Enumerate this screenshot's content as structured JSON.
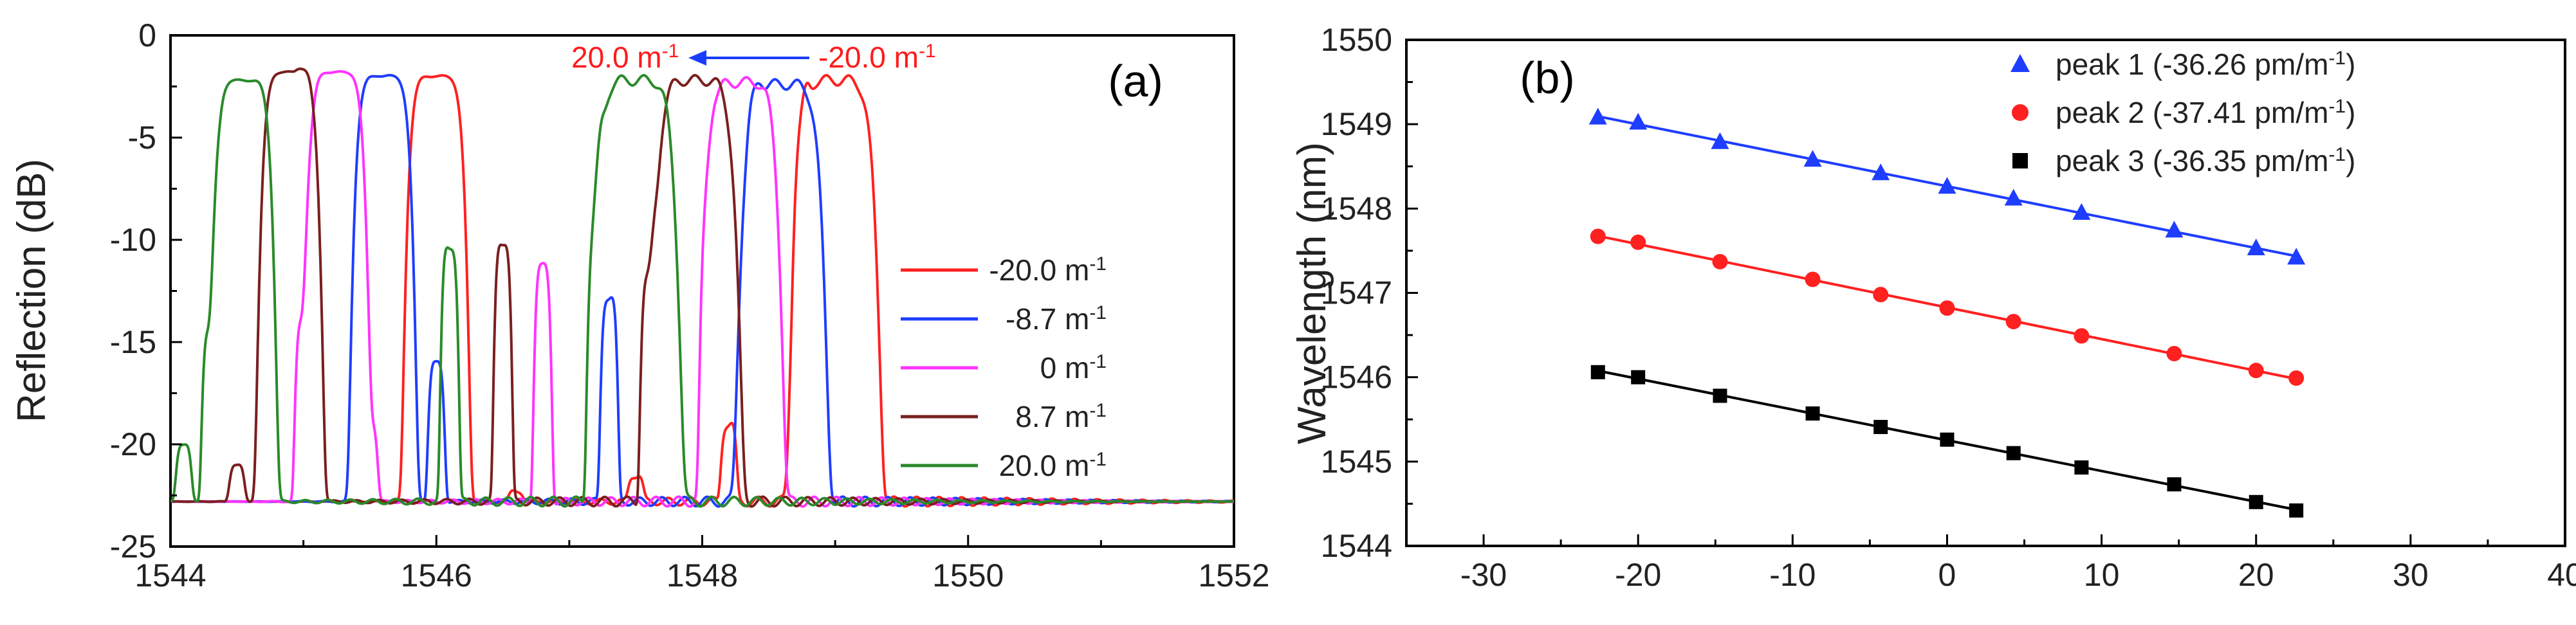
{
  "chart_data": [
    {
      "panel": "(a)",
      "type": "line",
      "title": "",
      "xlabel": "",
      "ylabel": "Reflection (dB)",
      "xlim": [
        1544,
        1552
      ],
      "ylim": [
        -25,
        0
      ],
      "xticks": [
        "1544",
        "1546",
        "1548",
        "1550",
        "1552"
      ],
      "yticks": [
        "0",
        "-5",
        "-10",
        "-15",
        "-20",
        "-25"
      ],
      "grid": false,
      "legend_position": "right",
      "annotation": {
        "left": "20.0 m",
        "right": "-20.0 m",
        "superscript": "-1",
        "color": "#ff1a1a",
        "arrow_color": "#1a3cff"
      },
      "series": [
        {
          "name": "-20.0 m",
          "sup": "-1",
          "color": "#ff2020",
          "main_peak": [
            1549.0,
            -2.2
          ],
          "width": 0.55,
          "side_lobes": [
            [
              1548.75,
              -10.3
            ],
            [
              1548.2,
              -19.0
            ],
            [
              1547.5,
              -21.5
            ],
            [
              1546.6,
              -22.3
            ]
          ]
        },
        {
          "name": "-8.7 m",
          "sup": "-1",
          "color": "#1f3dff",
          "main_peak": [
            1548.6,
            -2.4
          ],
          "width": 0.55,
          "side_lobes": [
            [
              1548.4,
              -12.5
            ],
            [
              1547.3,
              -12.8
            ],
            [
              1546.0,
              -16.0
            ],
            [
              1545.6,
              -20.5
            ]
          ]
        },
        {
          "name": "0 m",
          "sup": "-1",
          "color": "#ff33ff",
          "main_peak": [
            1548.3,
            -2.3
          ],
          "width": 0.5,
          "side_lobes": [
            [
              1548.05,
              -11.8
            ],
            [
              1546.8,
              -11.3
            ],
            [
              1545.5,
              -19.0
            ],
            [
              1545.0,
              -14.0
            ]
          ]
        },
        {
          "name": "8.7 m",
          "sup": "-1",
          "color": "#7a1f1f",
          "main_peak": [
            1547.95,
            -2.2
          ],
          "width": 0.55,
          "side_lobes": [
            [
              1547.6,
              -12.0
            ],
            [
              1546.5,
              -10.1
            ],
            [
              1545.0,
              -14.0
            ],
            [
              1544.5,
              -21.0
            ]
          ]
        },
        {
          "name": "20.0 m",
          "sup": "-1",
          "color": "#2a8a2a",
          "main_peak": [
            1547.5,
            -2.2
          ],
          "width": 0.55,
          "side_lobes": [
            [
              1547.2,
              -11.0
            ],
            [
              1546.1,
              -10.3
            ],
            [
              1544.3,
              -14.5
            ],
            [
              1544.1,
              -20.0
            ]
          ]
        }
      ],
      "secondary_peaks": [
        {
          "series": "-20.0 m",
          "x": 1546.0,
          "y": -2.0
        },
        {
          "series": "-8.7 m",
          "x": 1545.6,
          "y": -2.0
        },
        {
          "series": "0 m",
          "x": 1545.25,
          "y": -1.8
        },
        {
          "series": "8.7 m",
          "x": 1544.9,
          "y": -1.8
        },
        {
          "series": "20.0 m",
          "x": 1544.55,
          "y": -2.2
        }
      ]
    },
    {
      "panel": "(b)",
      "type": "scatter",
      "title": "",
      "xlabel": "",
      "ylabel": "Wavelength (nm)",
      "xlim": [
        -35,
        40
      ],
      "ylim": [
        1544,
        1550
      ],
      "xticks": [
        "-30",
        "-20",
        "-10",
        "0",
        "10",
        "20",
        "30",
        "40"
      ],
      "yticks": [
        "1550",
        "1549",
        "1548",
        "1547",
        "1546",
        "1545",
        "1544"
      ],
      "grid": false,
      "legend_position": "top-right",
      "x": [
        -22.6,
        -20.0,
        -14.7,
        -8.7,
        -4.3,
        0,
        4.3,
        8.7,
        14.7,
        20.0,
        22.6
      ],
      "series": [
        {
          "name": "peak 1 (-36.26 pm/m",
          "sup": "-1",
          "close": ")",
          "color": "#1f3dff",
          "marker": "triangle",
          "values": [
            1549.08,
            1549.02,
            1548.79,
            1548.58,
            1548.42,
            1548.26,
            1548.12,
            1547.95,
            1547.74,
            1547.53,
            1547.42
          ]
        },
        {
          "name": "peak 2 (-37.41 pm/m",
          "sup": "-1",
          "close": ")",
          "color": "#ff2020",
          "marker": "circle",
          "values": [
            1547.67,
            1547.6,
            1547.37,
            1547.16,
            1546.98,
            1546.82,
            1546.66,
            1546.49,
            1546.28,
            1546.08,
            1545.99
          ]
        },
        {
          "name": "peak 3 (-36.35 pm/m",
          "sup": "-1",
          "close": ")",
          "color": "#000000",
          "marker": "square",
          "values": [
            1546.06,
            1546.0,
            1545.78,
            1545.57,
            1545.41,
            1545.26,
            1545.1,
            1544.93,
            1544.73,
            1544.52,
            1544.42
          ]
        }
      ]
    }
  ]
}
